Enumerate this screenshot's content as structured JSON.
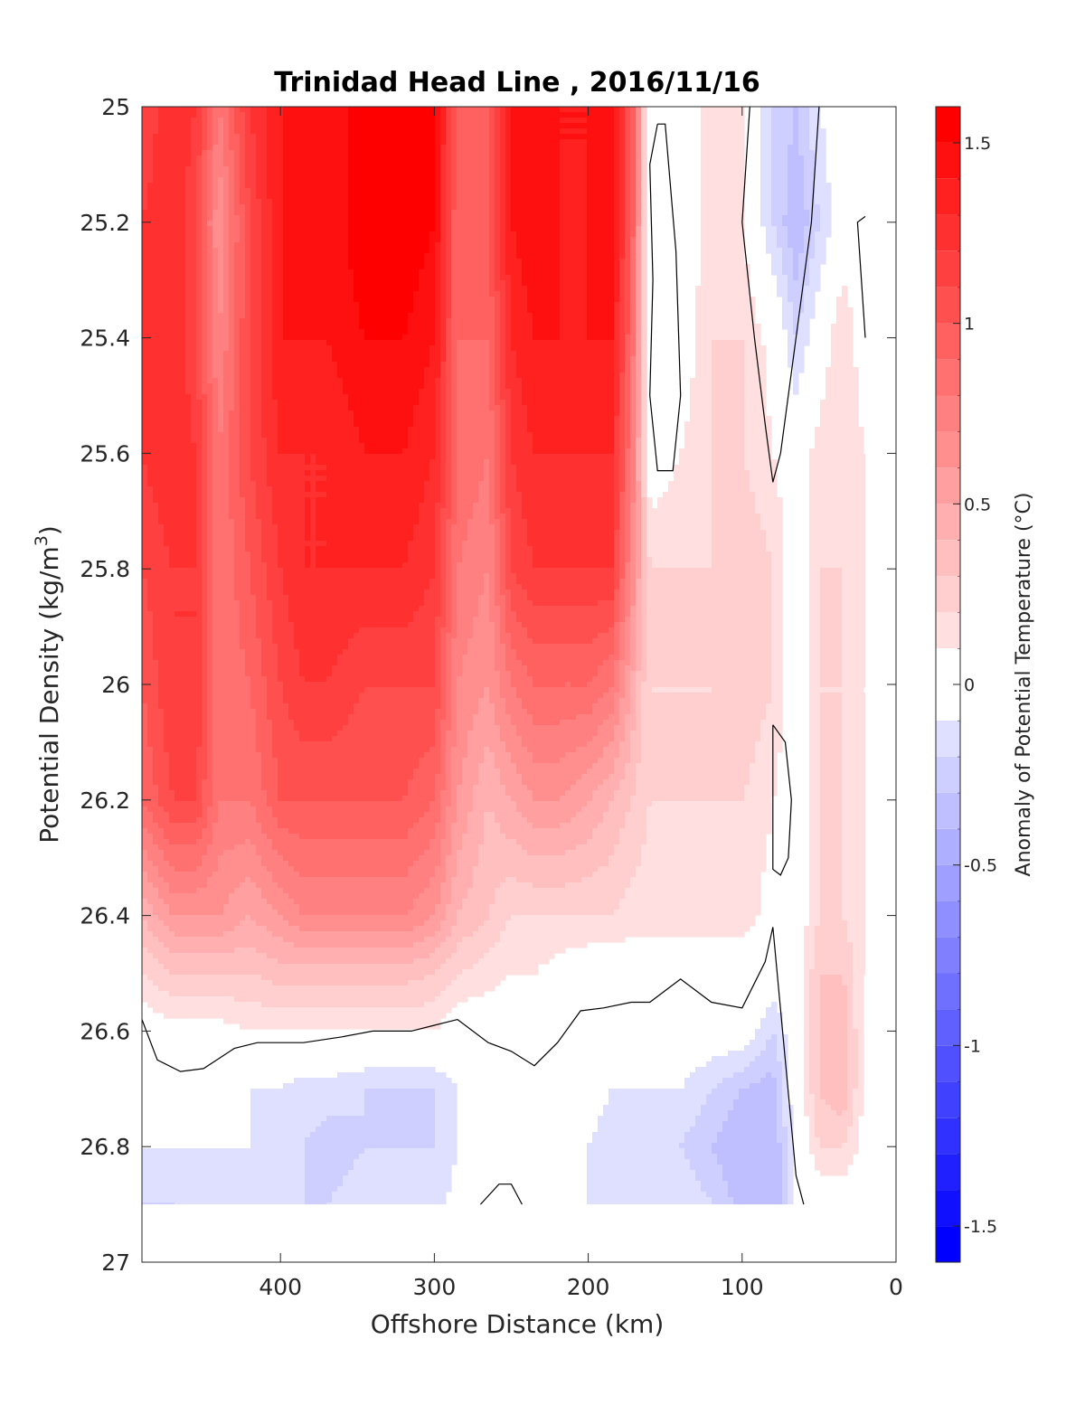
{
  "chart_data": {
    "type": "heatmap",
    "subtype": "filled-contour",
    "title": "Trinidad Head Line , 2016/11/16",
    "xlabel": "Offshore Distance (km)",
    "ylabel": "Potential Density (kg/m",
    "ylabel_sup": "3",
    "ylabel_close": ")",
    "colorbar_label": "Anomaly of Potential Temperature (°C)",
    "x_axis": {
      "reversed": true,
      "lim": [
        0,
        490
      ],
      "ticks": [
        400,
        300,
        200,
        100,
        0
      ],
      "tick_labels": [
        "400",
        "300",
        "200",
        "100",
        "0"
      ]
    },
    "y_axis": {
      "reversed": true,
      "lim": [
        25,
        27
      ],
      "ticks": [
        25,
        25.2,
        25.4,
        25.6,
        25.8,
        26,
        26.2,
        26.4,
        26.6,
        26.8,
        27
      ],
      "tick_labels": [
        "25",
        "25.2",
        "25.4",
        "25.6",
        "25.8",
        "26",
        "26.2",
        "26.4",
        "26.6",
        "26.8",
        "27"
      ]
    },
    "colorbar": {
      "lim": [
        -1.6,
        1.6
      ],
      "step": 0.1,
      "ticks": [
        1.5,
        1,
        0.5,
        0,
        -0.5,
        -1,
        -1.5
      ],
      "tick_labels": [
        "1.5",
        "1",
        "0.5",
        "0",
        "-0.5",
        "-1",
        "-1.5"
      ],
      "colormap": "blue-white-red",
      "zero_band": [
        -0.1,
        0.1
      ],
      "positive_color": "#ff0000",
      "negative_color": "#0000ff"
    },
    "data_y_range": [
      25,
      26.9
    ],
    "distances": [
      490,
      470,
      455,
      440,
      420,
      400,
      385,
      370,
      345,
      320,
      300,
      285,
      265,
      250,
      235,
      220,
      200,
      185,
      172,
      160,
      140,
      120,
      100,
      80,
      65,
      50,
      35,
      20
    ],
    "density_levels": [
      25.0,
      25.2,
      25.4,
      25.6,
      25.8,
      26.0,
      26.2,
      26.4,
      26.5,
      26.6,
      26.7,
      26.8,
      26.9
    ],
    "anomaly": [
      [
        1.1,
        1.3,
        1.2,
        0.8,
        1.2,
        1.4,
        1.5,
        1.4,
        1.6,
        1.6,
        1.5,
        1.0,
        1.0,
        1.4,
        1.5,
        1.4,
        1.4,
        1.5,
        1.0,
        -0.05,
        0.0,
        0.15,
        0.1,
        -0.2,
        -0.3,
        -0.1,
        0.0,
        0.0
      ],
      [
        1.2,
        1.3,
        1.1,
        0.6,
        1.1,
        1.4,
        1.5,
        1.4,
        1.6,
        1.6,
        1.5,
        0.9,
        1.0,
        1.4,
        1.5,
        1.4,
        1.4,
        1.5,
        1.0,
        -0.05,
        0.0,
        0.15,
        0.1,
        -0.2,
        -0.4,
        -0.2,
        0.0,
        0.0
      ],
      [
        1.2,
        1.3,
        1.1,
        0.7,
        1.1,
        1.4,
        1.4,
        1.4,
        1.5,
        1.5,
        1.4,
        0.9,
        0.9,
        1.3,
        1.4,
        1.4,
        1.4,
        1.4,
        0.9,
        -0.1,
        0.0,
        0.2,
        0.2,
        0.05,
        -0.2,
        0.0,
        0.2,
        0.0
      ],
      [
        1.2,
        1.3,
        1.2,
        0.8,
        1.1,
        1.3,
        1.3,
        1.3,
        1.4,
        1.4,
        1.3,
        0.9,
        0.8,
        1.2,
        1.3,
        1.3,
        1.3,
        1.3,
        0.8,
        0.0,
        0.1,
        0.2,
        0.2,
        0.1,
        0.0,
        0.15,
        0.2,
        0.1
      ],
      [
        1.1,
        1.2,
        1.2,
        0.8,
        1.0,
        1.2,
        1.3,
        1.3,
        1.3,
        1.3,
        1.2,
        0.8,
        0.7,
        1.1,
        1.2,
        1.2,
        1.2,
        1.2,
        0.7,
        0.2,
        0.2,
        0.2,
        0.3,
        0.2,
        0.0,
        0.2,
        0.2,
        0.1
      ],
      [
        1.0,
        1.2,
        1.2,
        0.8,
        0.9,
        1.1,
        1.2,
        1.2,
        1.1,
        1.1,
        1.1,
        0.7,
        0.6,
        0.8,
        0.9,
        0.9,
        0.9,
        0.8,
        0.5,
        0.2,
        0.2,
        0.2,
        0.3,
        0.2,
        0.0,
        0.2,
        0.2,
        0.1
      ],
      [
        0.9,
        1.1,
        1.1,
        0.8,
        0.8,
        1.0,
        1.0,
        1.0,
        1.0,
        1.0,
        0.9,
        0.6,
        0.4,
        0.5,
        0.6,
        0.6,
        0.5,
        0.4,
        0.3,
        0.2,
        0.2,
        0.2,
        0.2,
        0.1,
        0.0,
        0.2,
        0.2,
        0.1
      ],
      [
        0.4,
        0.6,
        0.6,
        0.6,
        0.5,
        0.6,
        0.7,
        0.7,
        0.7,
        0.7,
        0.6,
        0.4,
        0.3,
        0.2,
        0.2,
        0.2,
        0.2,
        0.2,
        0.15,
        0.15,
        0.15,
        0.15,
        0.15,
        0.05,
        0.0,
        0.2,
        0.2,
        0.1
      ],
      [
        0.2,
        0.3,
        0.3,
        0.3,
        0.3,
        0.35,
        0.35,
        0.35,
        0.35,
        0.35,
        0.3,
        0.2,
        0.15,
        0.1,
        0.1,
        0.05,
        0.0,
        0.0,
        0.0,
        0.0,
        0.0,
        0.0,
        0.0,
        0.0,
        0.0,
        0.3,
        0.3,
        0.1
      ],
      [
        0.0,
        0.05,
        0.05,
        0.05,
        0.1,
        0.1,
        0.1,
        0.1,
        0.1,
        0.1,
        0.1,
        0.0,
        0.0,
        0.0,
        0.0,
        0.0,
        0.0,
        0.0,
        -0.05,
        -0.05,
        0.0,
        0.0,
        0.0,
        -0.2,
        0.0,
        0.3,
        0.4,
        0.05
      ],
      [
        -0.1,
        0.0,
        0.0,
        -0.05,
        -0.1,
        -0.1,
        -0.15,
        -0.15,
        -0.2,
        -0.2,
        -0.2,
        -0.1,
        0.0,
        0.0,
        0.0,
        0.0,
        -0.05,
        -0.1,
        -0.1,
        -0.1,
        -0.1,
        -0.2,
        -0.3,
        -0.35,
        0.0,
        0.3,
        0.4,
        0.05
      ],
      [
        -0.1,
        -0.1,
        -0.1,
        -0.1,
        -0.1,
        -0.15,
        -0.2,
        -0.25,
        -0.2,
        -0.2,
        -0.2,
        -0.1,
        0.0,
        0.0,
        0.0,
        0.0,
        -0.1,
        -0.15,
        -0.1,
        -0.2,
        -0.2,
        -0.3,
        -0.4,
        -0.4,
        -0.05,
        0.2,
        0.2,
        0.05
      ],
      [
        -0.2,
        -0.2,
        -0.1,
        -0.1,
        -0.1,
        -0.15,
        -0.2,
        -0.2,
        -0.15,
        -0.15,
        -0.15,
        -0.05,
        0.0,
        0.0,
        0.0,
        0.0,
        -0.1,
        -0.1,
        -0.1,
        -0.1,
        -0.1,
        -0.2,
        -0.35,
        -0.4,
        -0.05,
        0.0,
        0.0,
        0.0
      ]
    ],
    "zero_contours": [
      [
        [
          490,
          26.58
        ],
        [
          480,
          26.65
        ],
        [
          465,
          26.67
        ],
        [
          450,
          26.665
        ],
        [
          430,
          26.63
        ],
        [
          415,
          26.62
        ],
        [
          400,
          26.62
        ],
        [
          385,
          26.62
        ],
        [
          360,
          26.61
        ],
        [
          340,
          26.6
        ],
        [
          315,
          26.6
        ],
        [
          300,
          26.59
        ],
        [
          285,
          26.58
        ],
        [
          265,
          26.62
        ],
        [
          250,
          26.635
        ],
        [
          235,
          26.66
        ],
        [
          220,
          26.62
        ],
        [
          205,
          26.565
        ],
        [
          190,
          26.56
        ],
        [
          172,
          26.55
        ],
        [
          160,
          26.55
        ],
        [
          140,
          26.51
        ],
        [
          120,
          26.55
        ],
        [
          100,
          26.56
        ],
        [
          85,
          26.48
        ],
        [
          80,
          26.42
        ],
        [
          65,
          26.85
        ],
        [
          60,
          26.9
        ]
      ],
      [
        [
          270,
          26.9
        ],
        [
          258,
          26.865
        ],
        [
          250,
          26.865
        ],
        [
          243,
          26.9
        ]
      ],
      [
        [
          155,
          25.03
        ],
        [
          160,
          25.1
        ],
        [
          158,
          25.3
        ],
        [
          160,
          25.5
        ],
        [
          155,
          25.63
        ],
        [
          145,
          25.63
        ],
        [
          140,
          25.5
        ],
        [
          143,
          25.25
        ],
        [
          150,
          25.03
        ],
        [
          155,
          25.03
        ]
      ],
      [
        [
          95,
          25.0
        ],
        [
          100,
          25.2
        ],
        [
          92,
          25.4
        ],
        [
          85,
          25.55
        ],
        [
          80,
          25.65
        ],
        [
          75,
          25.6
        ],
        [
          65,
          25.4
        ],
        [
          55,
          25.2
        ],
        [
          50,
          25.0
        ]
      ],
      [
        [
          20,
          25.19
        ],
        [
          25,
          25.2
        ],
        [
          20,
          25.4
        ]
      ],
      [
        [
          80,
          26.07
        ],
        [
          72,
          26.1
        ],
        [
          68,
          26.2
        ],
        [
          70,
          26.3
        ],
        [
          75,
          26.33
        ],
        [
          80,
          26.32
        ],
        [
          80,
          26.07
        ]
      ]
    ]
  }
}
